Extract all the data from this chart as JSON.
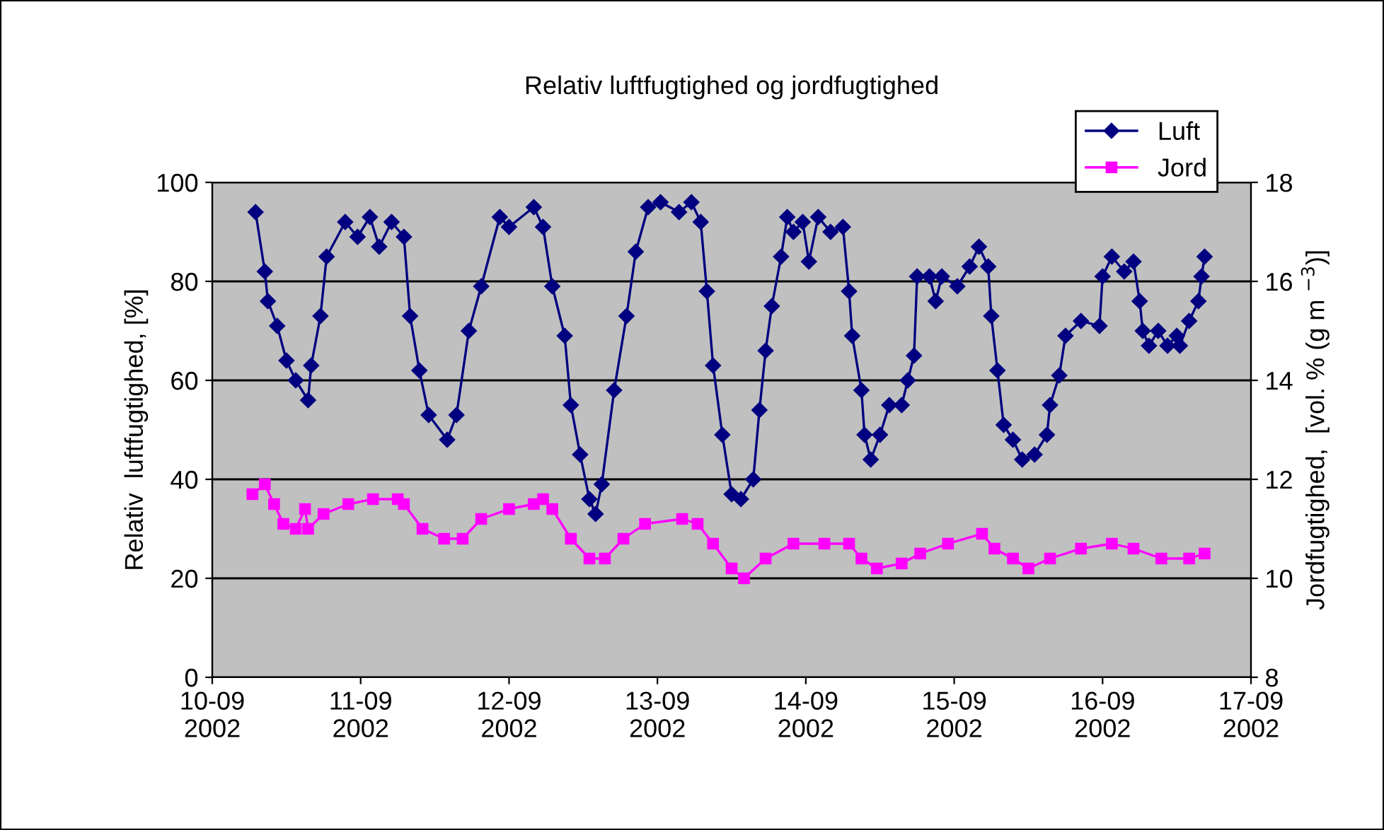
{
  "chart_data": {
    "type": "line",
    "title": "Relativ luftfugtighed og jordfugtighed",
    "ylabel": "Relativ  luftfugtighed, [%]",
    "y2label": "Jordfugtighed,  [vol. % (g m $^{−3}$)]",
    "xlim": [
      "2002-09-10",
      "2002-09-17"
    ],
    "xticks": [
      {
        "value": "2002-09-10",
        "label": "10-09\n2002"
      },
      {
        "value": "2002-09-11",
        "label": "11-09\n2002"
      },
      {
        "value": "2002-09-12",
        "label": "12-09\n2002"
      },
      {
        "value": "2002-09-13",
        "label": "13-09\n2002"
      },
      {
        "value": "2002-09-14",
        "label": "14-09\n2002"
      },
      {
        "value": "2002-09-15",
        "label": "15-09\n2002"
      },
      {
        "value": "2002-09-16",
        "label": "16-09\n2002"
      },
      {
        "value": "2002-09-17",
        "label": "17-09\n2002"
      }
    ],
    "ylim": [
      0,
      100
    ],
    "yticks": [
      0,
      20,
      40,
      60,
      80,
      100
    ],
    "y2lim": [
      8,
      18
    ],
    "y2ticks": [
      8,
      10,
      12,
      14,
      16,
      18
    ],
    "grid": "y",
    "legend": "top right",
    "line_style": "solid",
    "series": [
      {
        "name": "Luft",
        "color": "#000080",
        "marker": "diamond",
        "axis": "y",
        "x": [
          "2002-09-10T07:00",
          "2002-09-10T08:30",
          "2002-09-10T09:00",
          "2002-09-10T10:30",
          "2002-09-10T12:00",
          "2002-09-10T13:30",
          "2002-09-10T15:30",
          "2002-09-10T16:00",
          "2002-09-10T17:30",
          "2002-09-10T18:30",
          "2002-09-10T21:30",
          "2002-09-10T23:30",
          "2002-09-11T01:30",
          "2002-09-11T03:00",
          "2002-09-11T05:00",
          "2002-09-11T07:00",
          "2002-09-11T08:00",
          "2002-09-11T09:30",
          "2002-09-11T11:00",
          "2002-09-11T14:00",
          "2002-09-11T15:30",
          "2002-09-11T17:30",
          "2002-09-11T19:30",
          "2002-09-11T22:30",
          "2002-09-12T00:00",
          "2002-09-12T04:00",
          "2002-09-12T05:30",
          "2002-09-12T07:00",
          "2002-09-12T09:00",
          "2002-09-12T10:00",
          "2002-09-12T11:30",
          "2002-09-12T13:00",
          "2002-09-12T14:00",
          "2002-09-12T15:00",
          "2002-09-12T17:00",
          "2002-09-12T19:00",
          "2002-09-12T20:30",
          "2002-09-12T22:30",
          "2002-09-13T00:30",
          "2002-09-13T03:30",
          "2002-09-13T05:30",
          "2002-09-13T07:00",
          "2002-09-13T08:00",
          "2002-09-13T09:00",
          "2002-09-13T10:30",
          "2002-09-13T12:00",
          "2002-09-13T13:30",
          "2002-09-13T15:30",
          "2002-09-13T16:30",
          "2002-09-13T17:30",
          "2002-09-13T18:30",
          "2002-09-13T20:00",
          "2002-09-13T21:00",
          "2002-09-13T22:00",
          "2002-09-13T23:30",
          "2002-09-14T00:30",
          "2002-09-14T02:00",
          "2002-09-14T04:00",
          "2002-09-14T06:00",
          "2002-09-14T07:00",
          "2002-09-14T07:30",
          "2002-09-14T09:00",
          "2002-09-14T09:30",
          "2002-09-14T10:30",
          "2002-09-14T12:00",
          "2002-09-14T13:30",
          "2002-09-14T15:30",
          "2002-09-14T16:30",
          "2002-09-14T17:30",
          "2002-09-14T18:00",
          "2002-09-14T20:00",
          "2002-09-14T21:00",
          "2002-09-14T22:00",
          "2002-09-15T00:30",
          "2002-09-15T02:30",
          "2002-09-15T04:00",
          "2002-09-15T05:30",
          "2002-09-15T06:00",
          "2002-09-15T07:00",
          "2002-09-15T08:00",
          "2002-09-15T09:30",
          "2002-09-15T11:00",
          "2002-09-15T13:00",
          "2002-09-15T15:00",
          "2002-09-15T15:30",
          "2002-09-15T17:00",
          "2002-09-15T18:00",
          "2002-09-15T20:30",
          "2002-09-15T23:30",
          "2002-09-16T00:00",
          "2002-09-16T01:30",
          "2002-09-16T03:30",
          "2002-09-16T05:00",
          "2002-09-16T06:00",
          "2002-09-16T06:30",
          "2002-09-16T07:30",
          "2002-09-16T09:00",
          "2002-09-16T10:30",
          "2002-09-16T12:00",
          "2002-09-16T12:30",
          "2002-09-16T14:00",
          "2002-09-16T15:30",
          "2002-09-16T16:00",
          "2002-09-16T16:30"
        ],
        "values": [
          94,
          82,
          76,
          71,
          64,
          60,
          56,
          63,
          73,
          85,
          92,
          89,
          93,
          87,
          92,
          89,
          73,
          62,
          53,
          48,
          53,
          70,
          79,
          93,
          91,
          95,
          91,
          79,
          69,
          55,
          45,
          36,
          33,
          39,
          58,
          73,
          86,
          95,
          96,
          94,
          96,
          92,
          78,
          63,
          49,
          37,
          36,
          40,
          54,
          66,
          75,
          85,
          93,
          90,
          92,
          84,
          93,
          90,
          91,
          78,
          69,
          58,
          49,
          44,
          49,
          55,
          55,
          60,
          65,
          81,
          81,
          76,
          81,
          79,
          83,
          87,
          83,
          73,
          62,
          51,
          48,
          44,
          45,
          49,
          55,
          61,
          69,
          72,
          71,
          81,
          85,
          82,
          84,
          76,
          70,
          67,
          70,
          67,
          69,
          67,
          72,
          76,
          81,
          85
        ]
      },
      {
        "name": "Jord",
        "color": "#ff00ff",
        "marker": "square",
        "axis": "y2",
        "x": [
          "2002-09-10T06:30",
          "2002-09-10T08:30",
          "2002-09-10T10:00",
          "2002-09-10T11:30",
          "2002-09-10T13:30",
          "2002-09-10T15:00",
          "2002-09-10T15:30",
          "2002-09-10T18:00",
          "2002-09-10T22:00",
          "2002-09-11T02:00",
          "2002-09-11T06:00",
          "2002-09-11T07:00",
          "2002-09-11T10:00",
          "2002-09-11T13:30",
          "2002-09-11T16:30",
          "2002-09-11T19:30",
          "2002-09-12T00:00",
          "2002-09-12T04:00",
          "2002-09-12T05:30",
          "2002-09-12T07:00",
          "2002-09-12T10:00",
          "2002-09-12T13:00",
          "2002-09-12T15:30",
          "2002-09-12T18:30",
          "2002-09-12T22:00",
          "2002-09-13T04:00",
          "2002-09-13T06:30",
          "2002-09-13T09:00",
          "2002-09-13T12:00",
          "2002-09-13T14:00",
          "2002-09-13T17:30",
          "2002-09-13T22:00",
          "2002-09-14T03:00",
          "2002-09-14T07:00",
          "2002-09-14T09:00",
          "2002-09-14T11:30",
          "2002-09-14T15:30",
          "2002-09-14T18:30",
          "2002-09-14T23:00",
          "2002-09-15T04:30",
          "2002-09-15T06:30",
          "2002-09-15T09:30",
          "2002-09-15T12:00",
          "2002-09-15T15:30",
          "2002-09-15T20:30",
          "2002-09-16T01:30",
          "2002-09-16T05:00",
          "2002-09-16T09:30",
          "2002-09-16T14:00",
          "2002-09-16T16:30"
        ],
        "values": [
          11.7,
          11.9,
          11.5,
          11.1,
          11.0,
          11.4,
          11.0,
          11.3,
          11.5,
          11.6,
          11.6,
          11.5,
          11.0,
          10.8,
          10.8,
          11.2,
          11.4,
          11.5,
          11.6,
          11.4,
          10.8,
          10.4,
          10.4,
          10.8,
          11.1,
          11.2,
          11.1,
          10.7,
          10.2,
          10.0,
          10.4,
          10.7,
          10.7,
          10.7,
          10.4,
          10.2,
          10.3,
          10.5,
          10.7,
          10.9,
          10.6,
          10.4,
          10.2,
          10.4,
          10.6,
          10.7,
          10.6,
          10.4,
          10.4,
          10.5
        ]
      }
    ]
  }
}
